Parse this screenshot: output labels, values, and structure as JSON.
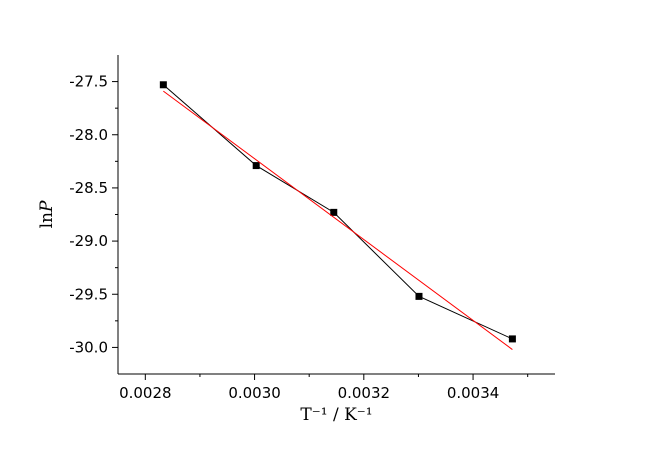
{
  "chart_data": {
    "type": "scatter",
    "title": "",
    "xlabel": "T⁻¹ / K⁻¹",
    "ylabel_prefix": "ln",
    "ylabel_var": "P",
    "xlim": [
      0.00275,
      0.00355
    ],
    "ylim": [
      -30.25,
      -27.25
    ],
    "x_ticks": [
      "0.0028",
      "0.0030",
      "0.0032",
      "0.0034"
    ],
    "x_tick_values": [
      0.0028,
      0.003,
      0.0032,
      0.0034
    ],
    "y_ticks": [
      "-27.5",
      "-28.0",
      "-28.5",
      "-29.0",
      "-29.5",
      "-30.0"
    ],
    "y_tick_values": [
      -27.5,
      -28.0,
      -28.5,
      -29.0,
      -29.5,
      -30.0
    ],
    "grid": false,
    "series": [
      {
        "style": "line+square-markers",
        "color": "#000000",
        "x": [
          0.002833,
          0.003003,
          0.003145,
          0.003301,
          0.003472
        ],
        "y": [
          -27.53,
          -28.29,
          -28.73,
          -29.52,
          -29.92
        ]
      }
    ],
    "fit_line": {
      "color": "#ff0000",
      "x": [
        0.002833,
        0.003472
      ],
      "y": [
        -27.59,
        -30.02
      ]
    }
  }
}
